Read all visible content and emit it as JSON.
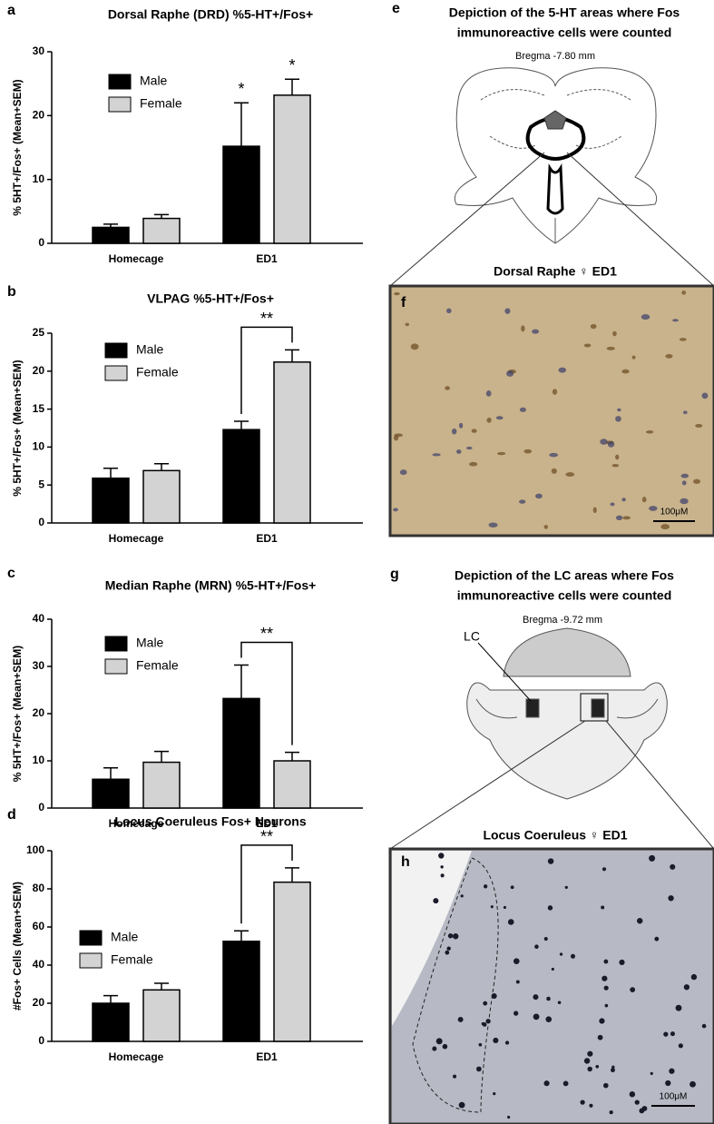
{
  "chart_data": [
    {
      "type": "bar",
      "label": "a",
      "title": "Dorsal Raphe (DRD) %5-HT+/Fos+",
      "ylabel": "% 5HT+/Fos+ (Mean+SEM)",
      "categories": [
        "Homecage",
        "ED1"
      ],
      "series": [
        {
          "name": "Male",
          "color": "#000000",
          "values": [
            2.5,
            15.2
          ],
          "errors": [
            0.5,
            6.8
          ]
        },
        {
          "name": "Female",
          "color": "#d3d3d3",
          "values": [
            3.9,
            23.2
          ],
          "errors": [
            0.6,
            2.5
          ]
        }
      ],
      "ylim": [
        0,
        30
      ],
      "yticks": [
        0,
        10,
        20,
        30
      ],
      "annotations": [
        "*",
        "*"
      ]
    },
    {
      "type": "bar",
      "label": "b",
      "title": "VLPAG %5-HT+/Fos+",
      "ylabel": "% 5HT+/Fos+ (Mean+SEM)",
      "categories": [
        "Homecage",
        "ED1"
      ],
      "series": [
        {
          "name": "Male",
          "color": "#000000",
          "values": [
            5.9,
            12.3
          ],
          "errors": [
            1.3,
            1.1
          ]
        },
        {
          "name": "Female",
          "color": "#d3d3d3",
          "values": [
            6.9,
            21.2
          ],
          "errors": [
            0.9,
            1.6
          ]
        }
      ],
      "ylim": [
        0,
        25
      ],
      "yticks": [
        0,
        5,
        10,
        15,
        20,
        25
      ],
      "annotations": [
        "**"
      ]
    },
    {
      "type": "bar",
      "label": "c",
      "title": "Median Raphe (MRN) %5-HT+/Fos+",
      "ylabel": "% 5HT+/Fos+ (Mean+SEM)",
      "categories": [
        "Homecage",
        "ED1"
      ],
      "series": [
        {
          "name": "Male",
          "color": "#000000",
          "values": [
            6.1,
            23.2
          ],
          "errors": [
            2.4,
            7.1
          ]
        },
        {
          "name": "Female",
          "color": "#d3d3d3",
          "values": [
            9.7,
            10.0
          ],
          "errors": [
            2.3,
            1.8
          ]
        }
      ],
      "ylim": [
        0,
        40
      ],
      "yticks": [
        0,
        10,
        20,
        30,
        40
      ],
      "annotations": [
        "**"
      ]
    },
    {
      "type": "bar",
      "label": "d",
      "title": "Locus Coeruleus Fos+ Neurons",
      "ylabel": "#Fos+ Cells (Mean+SEM)",
      "categories": [
        "Homecage",
        "ED1"
      ],
      "series": [
        {
          "name": "Male",
          "color": "#000000",
          "values": [
            20,
            52.5
          ],
          "errors": [
            4,
            5.5
          ]
        },
        {
          "name": "Female",
          "color": "#d3d3d3",
          "values": [
            27,
            83.5
          ],
          "errors": [
            3.5,
            7.5
          ]
        }
      ],
      "ylim": [
        0,
        100
      ],
      "yticks": [
        0,
        20,
        40,
        60,
        80,
        100
      ],
      "annotations": [
        "**"
      ]
    }
  ],
  "panels": {
    "e": {
      "label": "e",
      "title_1": "Depiction of the 5-HT areas where Fos",
      "title_2": "immunoreactive cells were counted",
      "bregma": "Bregma -7.80 mm",
      "caption": "Dorsal Raphe ♀ ED1"
    },
    "f": {
      "label": "f",
      "scale": "100μM"
    },
    "g": {
      "label": "g",
      "title_1": "Depiction of the LC areas where Fos",
      "title_2": "immunoreactive cells were counted",
      "bregma": "Bregma -9.72 mm",
      "region": "LC",
      "caption": "Locus Coeruleus ♀ ED1"
    },
    "h": {
      "label": "h",
      "scale": "100μM"
    }
  }
}
